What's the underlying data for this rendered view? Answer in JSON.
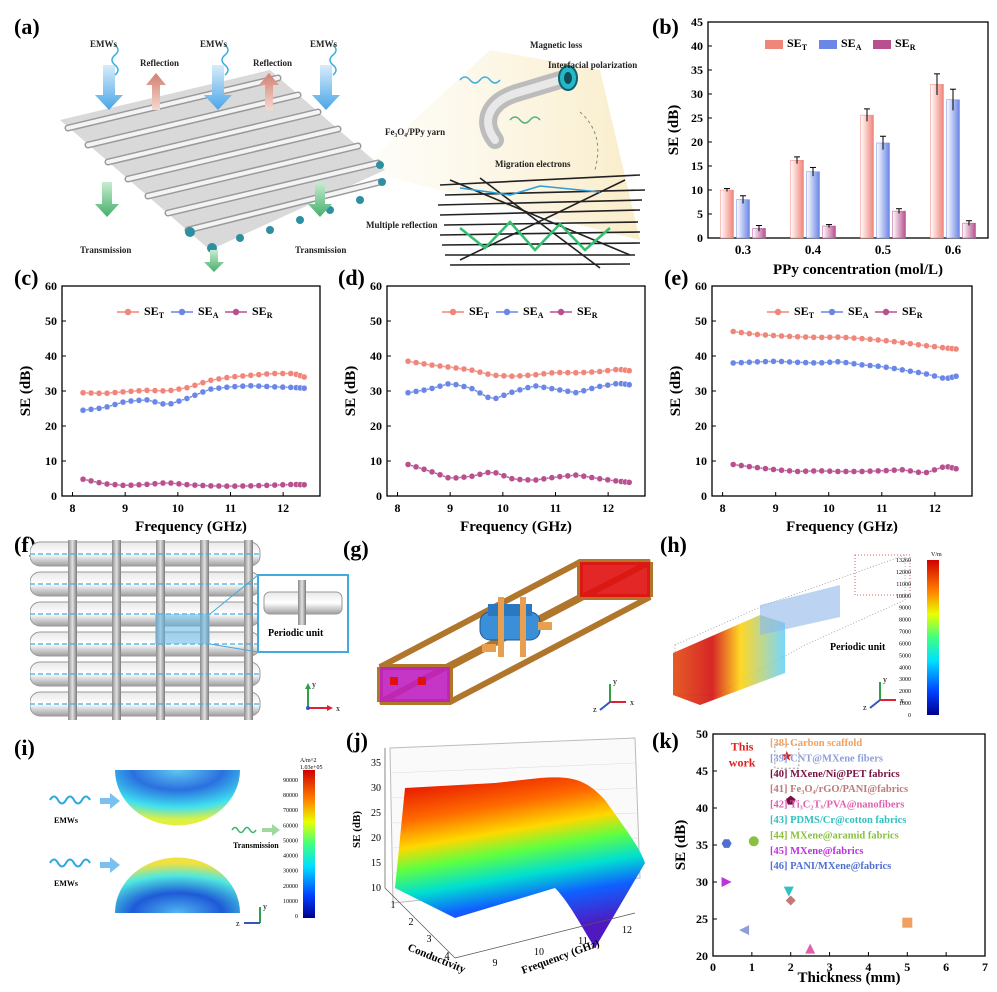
{
  "panel_labels": {
    "a": "(a)",
    "b": "(b)",
    "c": "(c)",
    "d": "(d)",
    "e": "(e)",
    "f": "(f)",
    "g": "(g)",
    "h": "(h)",
    "i": "(i)",
    "j": "(j)",
    "k": "(k)"
  },
  "panel_a": {
    "emw1": "EMWs",
    "emw2": "EMWs",
    "emw3": "EMWs",
    "reflection1": "Reflection",
    "reflection2": "Reflection",
    "transmission1": "Transmission",
    "transmission2": "Transmission",
    "yarn": "Fe₃O₄/PPy yarn",
    "magnetic_loss": "Magnetic loss",
    "interfacial": "Interfacial polarization",
    "migration": "Migration electrons",
    "multiple": "Multiple reflection"
  },
  "panel_f": {
    "label": "Periodic unit"
  },
  "panel_h": {
    "label": "Periodic unit",
    "cb_unit": "V/m",
    "cb_ticks": [
      "13260",
      "12000",
      "11000",
      "10000",
      "9000",
      "8000",
      "7000",
      "6000",
      "5000",
      "4000",
      "3000",
      "2000",
      "1000",
      "0"
    ]
  },
  "panel_i": {
    "emw1": "EMWs",
    "emw2": "EMWs",
    "transmission": "Transmission",
    "cb_unit": "A/m^2",
    "cb_top": "1.03e+05",
    "cb_ticks": [
      "90000",
      "80000",
      "70000",
      "60000",
      "50000",
      "40000",
      "30000",
      "20000",
      "10000",
      "0"
    ]
  },
  "axes_letters": {
    "y": "y",
    "x": "x",
    "z": "z"
  },
  "colors": {
    "se_t": "#f0857a",
    "se_a": "#6a86e6",
    "se_r": "#b8508f"
  },
  "chart_data": [
    {
      "id": "b",
      "type": "bar",
      "categories": [
        "0.3",
        "0.4",
        "0.5",
        "0.6"
      ],
      "series": [
        {
          "name": "SE_T",
          "values": [
            10,
            16.2,
            25.6,
            32
          ],
          "errors": [
            0.3,
            0.7,
            1.3,
            2.2
          ]
        },
        {
          "name": "SE_A",
          "values": [
            8,
            13.8,
            19.8,
            28.8
          ],
          "errors": [
            0.8,
            0.9,
            1.4,
            2.2
          ]
        },
        {
          "name": "SE_R",
          "values": [
            2,
            2.5,
            5.6,
            3.1
          ],
          "errors": [
            0.6,
            0.3,
            0.5,
            0.5
          ]
        }
      ],
      "xlabel": "PPy concentration (mol/L)",
      "ylabel": "SE (dB)",
      "ylim": [
        0,
        45
      ],
      "yticks": [
        0,
        5,
        10,
        15,
        20,
        25,
        30,
        35,
        40,
        45
      ],
      "legend": [
        "SE",
        "T",
        "SE",
        "A",
        "SE",
        "R"
      ]
    },
    {
      "id": "c",
      "type": "line",
      "x": [
        8.2,
        8.6,
        9.0,
        9.4,
        9.8,
        10.2,
        10.6,
        11.0,
        11.4,
        11.8,
        12.2,
        12.4
      ],
      "series": [
        {
          "name": "SE_T",
          "values": [
            29.5,
            29.3,
            29.8,
            30.2,
            30,
            31,
            33,
            34,
            34.5,
            35,
            35,
            34
          ]
        },
        {
          "name": "SE_A",
          "values": [
            24.5,
            25.2,
            27,
            27.5,
            26,
            28,
            30.5,
            31.2,
            31.5,
            31.2,
            31,
            30.8
          ]
        },
        {
          "name": "SE_R",
          "values": [
            4.8,
            3.5,
            3,
            3.3,
            3.8,
            3.2,
            2.9,
            2.8,
            2.9,
            3.1,
            3.3,
            3.2
          ]
        }
      ],
      "xlabel": "Frequency (GHz)",
      "ylabel": "SE (dB)",
      "xlim": [
        7.8,
        12.7
      ],
      "ylim": [
        0,
        60
      ],
      "xticks": [
        8,
        9,
        10,
        11,
        12
      ],
      "yticks": [
        0,
        10,
        20,
        30,
        40,
        50,
        60
      ],
      "legend": [
        "SE",
        "T",
        "SE",
        "A",
        "SE",
        "R"
      ]
    },
    {
      "id": "d",
      "type": "line",
      "x": [
        8.2,
        8.6,
        9.0,
        9.4,
        9.8,
        10.2,
        10.6,
        11.0,
        11.4,
        11.8,
        12.2,
        12.4
      ],
      "series": [
        {
          "name": "SE_T",
          "values": [
            38.5,
            37.5,
            36.8,
            36,
            34.5,
            34.2,
            34.6,
            35.3,
            35.2,
            35.5,
            36.2,
            35.8
          ]
        },
        {
          "name": "SE_A",
          "values": [
            29.5,
            30.5,
            32.2,
            30.8,
            27.5,
            29.8,
            31.5,
            30.5,
            29.5,
            31.2,
            32.2,
            31.8
          ]
        },
        {
          "name": "SE_R",
          "values": [
            9,
            7.2,
            5,
            5.6,
            7,
            4.8,
            4.5,
            5.4,
            6,
            5,
            4.2,
            3.9
          ]
        }
      ],
      "xlabel": "Frequency (GHz)",
      "ylabel": "SE (dB)",
      "xlim": [
        7.8,
        12.7
      ],
      "ylim": [
        0,
        60
      ],
      "xticks": [
        8,
        9,
        10,
        11,
        12
      ],
      "yticks": [
        0,
        10,
        20,
        30,
        40,
        50,
        60
      ],
      "legend": [
        "SE",
        "T",
        "SE",
        "A",
        "SE",
        "R"
      ]
    },
    {
      "id": "e",
      "type": "line",
      "x": [
        8.2,
        8.6,
        9.0,
        9.4,
        9.8,
        10.2,
        10.6,
        11.0,
        11.4,
        11.8,
        12.2,
        12.4
      ],
      "series": [
        {
          "name": "SE_T",
          "values": [
            47,
            46.2,
            45.8,
            45.5,
            45.3,
            45.4,
            45,
            44.5,
            43.8,
            43,
            42.3,
            42
          ]
        },
        {
          "name": "SE_A",
          "values": [
            38,
            38.3,
            38.5,
            38.2,
            38,
            38.4,
            37.5,
            37,
            36,
            35,
            33.5,
            34.2
          ]
        },
        {
          "name": "SE_R",
          "values": [
            9,
            8.2,
            7.5,
            7,
            7.2,
            7,
            7,
            7.2,
            7.5,
            6.5,
            8.5,
            7.8
          ]
        }
      ],
      "xlabel": "Frequency (GHz)",
      "ylabel": "SE (dB)",
      "xlim": [
        7.8,
        12.7
      ],
      "ylim": [
        0,
        60
      ],
      "xticks": [
        8,
        9,
        10,
        11,
        12
      ],
      "yticks": [
        0,
        10,
        20,
        30,
        40,
        50,
        60
      ],
      "legend": [
        "SE",
        "T",
        "SE",
        "A",
        "SE",
        "R"
      ]
    },
    {
      "id": "j",
      "type": "area",
      "xlabel": "Conductivity",
      "ylabel2": "Frequency (GHz)",
      "zlabel": "SE (dB)",
      "conductivity_ticks": [
        "1",
        "2",
        "3",
        "4"
      ],
      "frequency_ticks": [
        "9",
        "10",
        "11",
        "12"
      ],
      "se_ticks": [
        "10",
        "15",
        "20",
        "25",
        "30",
        "35"
      ],
      "zlim": [
        10,
        35
      ]
    },
    {
      "id": "k",
      "type": "scatter",
      "xlabel": "Thickness (mm)",
      "ylabel": "SE (dB)",
      "xlim": [
        0,
        7
      ],
      "ylim": [
        20,
        50
      ],
      "xticks": [
        0,
        1,
        2,
        3,
        4,
        5,
        6,
        7
      ],
      "yticks": [
        20,
        25,
        30,
        35,
        40,
        45,
        50
      ],
      "this_work_label": [
        "This",
        "work"
      ],
      "points": [
        {
          "label": "[38] Carbon scaffold",
          "x": 5.0,
          "y": 24.5,
          "color": "#f0a060",
          "marker": "square"
        },
        {
          "label": "[39] CNT@MXene fibers",
          "x": 0.8,
          "y": 23.5,
          "color": "#8fa0d8",
          "marker": "triangle-left"
        },
        {
          "label": "[40] MXene/Ni@PET fabrics",
          "x": 2.0,
          "y": 41,
          "color": "#7a1040",
          "marker": "pentagon"
        },
        {
          "label": "[41] Fe₃O₄/rGO/PANI@fabrics",
          "x": 2.0,
          "y": 27.5,
          "color": "#c07a7a",
          "marker": "diamond"
        },
        {
          "label": "[42] Ti₃C₂Tₓ/PVA@nanofibers",
          "x": 2.5,
          "y": 21,
          "color": "#e060b0",
          "marker": "triangle"
        },
        {
          "label": "[43] PDMS/Cr@cotton fabrics",
          "x": 1.95,
          "y": 28.7,
          "color": "#30c0c0",
          "marker": "triangle-down"
        },
        {
          "label": "[44] MXene@aramid fabrics",
          "x": 1.05,
          "y": 35.5,
          "color": "#8ac040",
          "marker": "circle"
        },
        {
          "label": "[45] MXene@fabrics",
          "x": 0.35,
          "y": 30,
          "color": "#c030e0",
          "marker": "triangle-right"
        },
        {
          "label": "[46] PANI/MXene@fabrics",
          "x": 0.35,
          "y": 35.2,
          "color": "#5070d0",
          "marker": "hexagon"
        },
        {
          "label": "This work",
          "x": 1.9,
          "y": 47,
          "color": "#e02020",
          "marker": "star"
        }
      ]
    }
  ]
}
